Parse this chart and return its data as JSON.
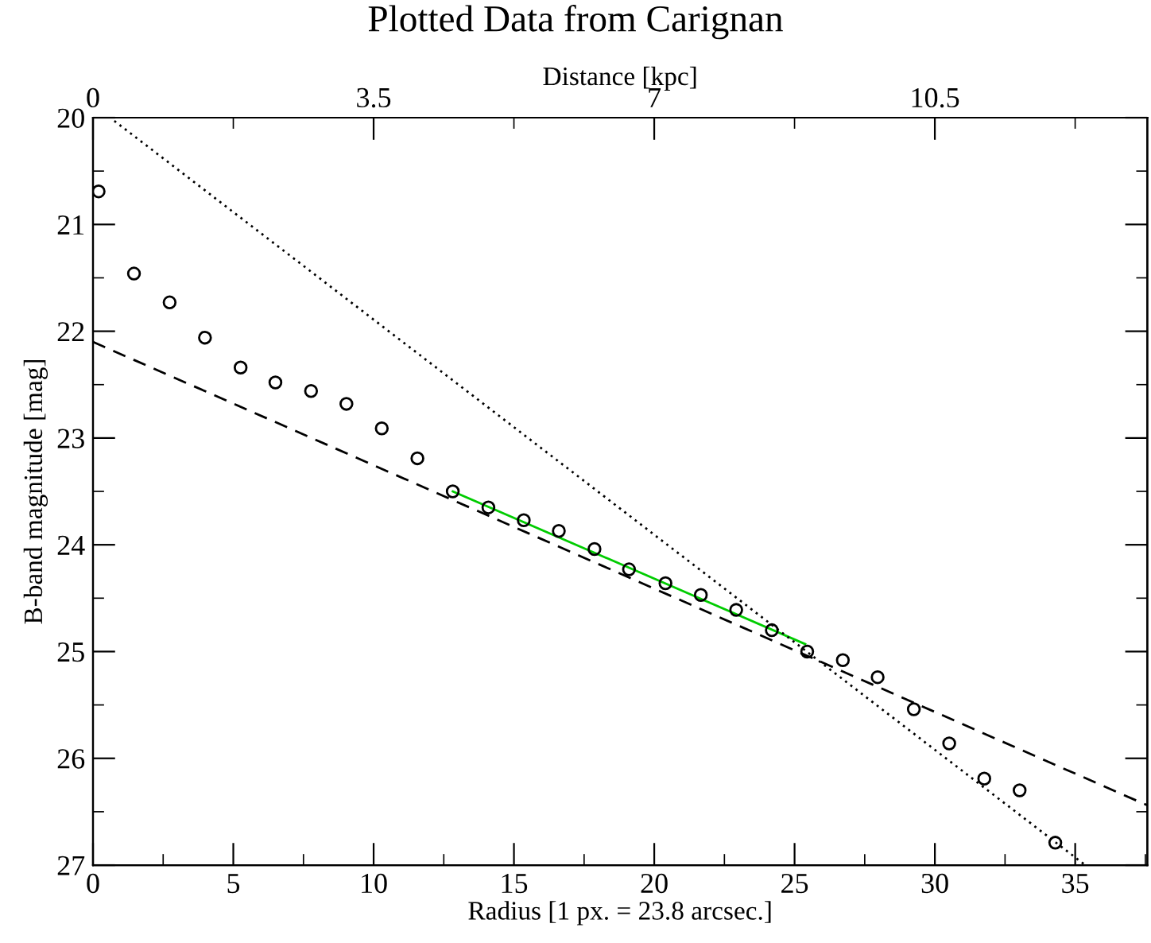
{
  "chart_data": {
    "type": "scatter",
    "title": "Plotted Data from Carignan",
    "xlabel": "Radius [1 px. = 23.8 arcsec.]",
    "ylabel": "B-band magnitude [mag]",
    "x2label": "Distance [kpc]",
    "xlim": [
      0,
      37.57
    ],
    "xticks": [
      0,
      {
        "value": 2.5,
        "label": null
      },
      5,
      {
        "value": 7.5,
        "label": null
      },
      10,
      {
        "value": 12.5,
        "label": null
      },
      15,
      {
        "value": 17.5,
        "label": null
      },
      20,
      {
        "value": 22.5,
        "label": null
      },
      25,
      {
        "value": 27.5,
        "label": null
      },
      30,
      {
        "value": 32.5,
        "label": null
      },
      35,
      {
        "value": 37.5,
        "label": null
      }
    ],
    "x2lim": [
      0,
      13.15
    ],
    "x2ticks": [
      0,
      {
        "value": 1.75,
        "label": null
      },
      3.5,
      {
        "value": 5.25,
        "label": null
      },
      7,
      {
        "value": 8.75,
        "label": null
      },
      10.5,
      {
        "value": 12.25,
        "label": null
      }
    ],
    "ylim": [
      27,
      20
    ],
    "yticks": [
      20,
      {
        "value": 20.5,
        "label": null
      },
      21,
      {
        "value": 21.5,
        "label": null
      },
      22,
      {
        "value": 22.5,
        "label": null
      },
      23,
      {
        "value": 23.5,
        "label": null
      },
      24,
      {
        "value": 24.5,
        "label": null
      },
      25,
      {
        "value": 25.5,
        "label": null
      },
      26,
      {
        "value": 26.5,
        "label": null
      },
      27
    ],
    "grid": false,
    "legend": false,
    "series": [
      {
        "type": "line",
        "color": "#00cc00",
        "line_style": "solid",
        "x": [
          12.82,
          25.38
        ],
        "values": [
          23.5,
          24.93
        ]
      },
      {
        "type": "line",
        "color": "#000000",
        "line_style": "dashed",
        "x": [
          0,
          37.57
        ],
        "values": [
          22.1,
          26.44
        ]
      },
      {
        "type": "line",
        "color": "#000000",
        "line_style": "dotted",
        "x": [
          0.76,
          35.36
        ],
        "values": [
          20.03,
          27.0
        ]
      },
      {
        "color": "#000000",
        "marker": "circle",
        "x": [
          0.2,
          1.46,
          2.73,
          3.99,
          5.26,
          6.5,
          7.77,
          9.03,
          10.29,
          11.56,
          12.82,
          14.09,
          15.35,
          16.6,
          17.87,
          19.1,
          20.4,
          21.66,
          22.92,
          24.19,
          25.45,
          26.72,
          27.96,
          29.25,
          30.51,
          31.76,
          33.02,
          34.29
        ],
        "values": [
          20.69,
          21.46,
          21.73,
          22.06,
          22.34,
          22.48,
          22.56,
          22.68,
          22.91,
          23.19,
          23.5,
          23.65,
          23.77,
          23.87,
          24.04,
          24.23,
          24.36,
          24.47,
          24.61,
          24.8,
          25.0,
          25.08,
          25.24,
          25.54,
          25.86,
          26.19,
          26.3,
          26.79
        ]
      }
    ]
  }
}
